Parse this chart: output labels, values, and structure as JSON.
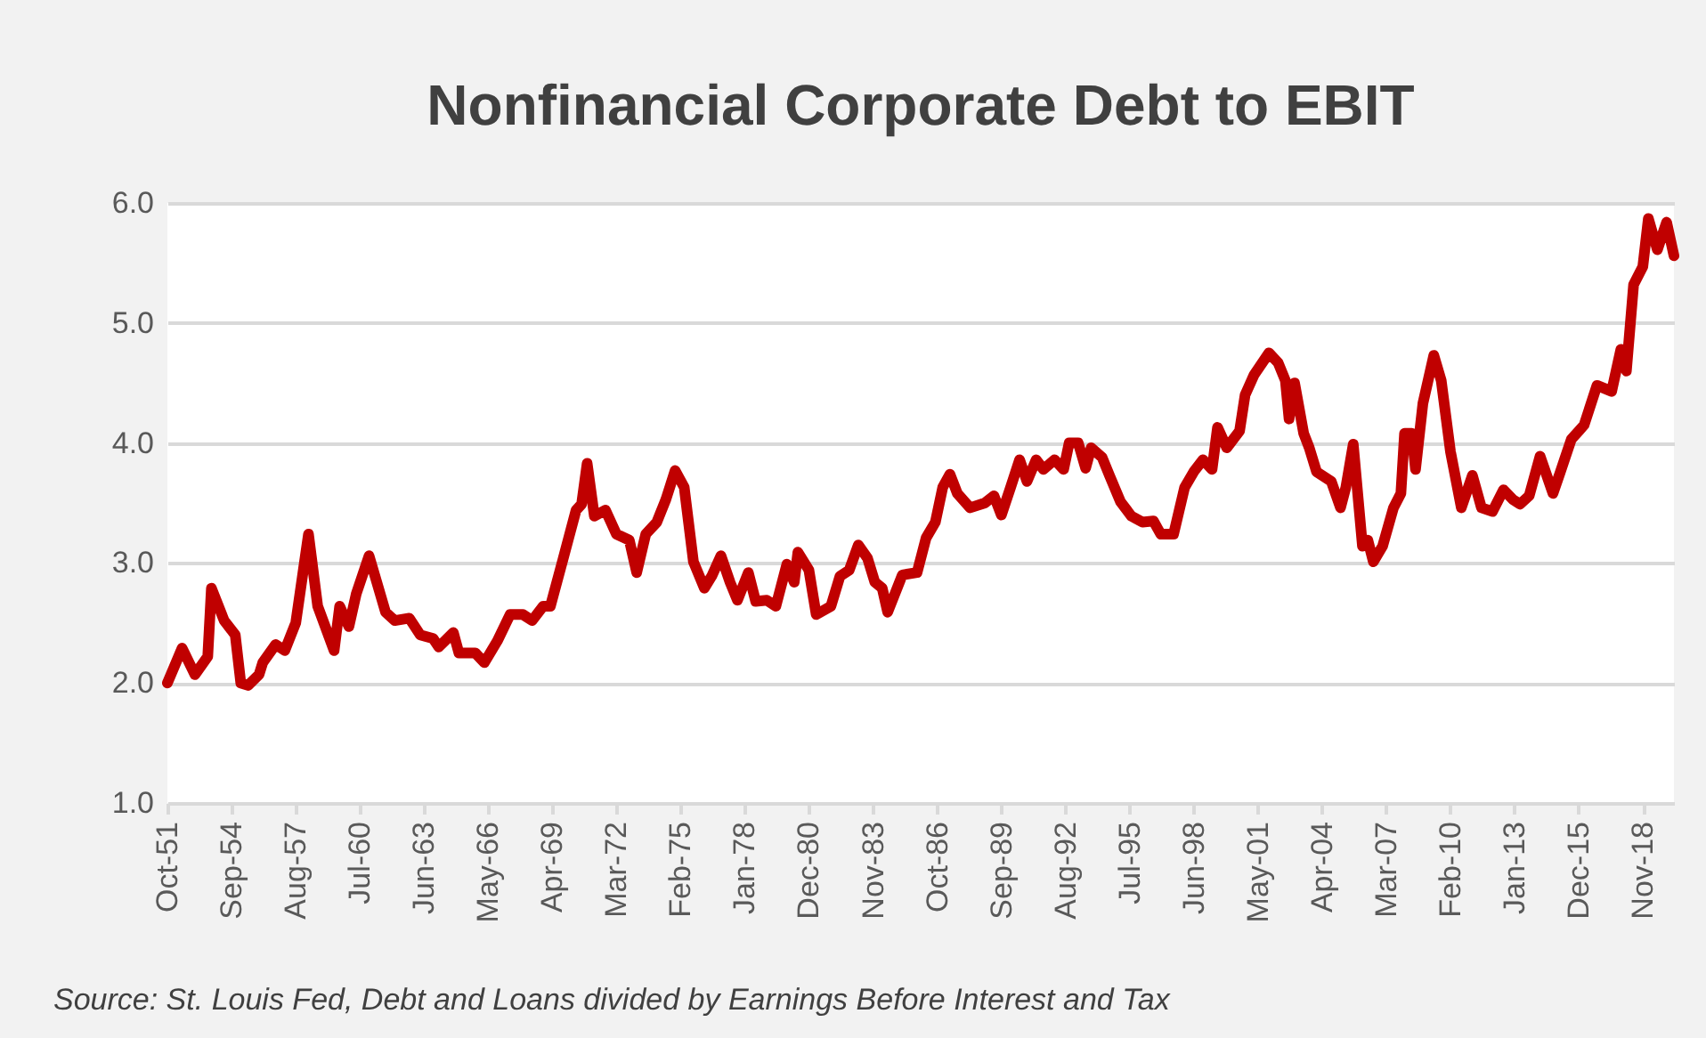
{
  "chart_data": {
    "type": "line",
    "title": "Nonfinancial Corporate Debt to EBIT",
    "annotations": [
      "Source: St. Louis Fed, Debt and Loans divided by Earnings Before Interest and Tax"
    ],
    "x": [
      "1951-10",
      "1952-06",
      "1953-01",
      "1953-08",
      "1953-10",
      "1954-05",
      "1954-11",
      "1955-02",
      "1955-06",
      "1955-12",
      "1956-02",
      "1956-09",
      "1957-02",
      "1957-08",
      "1958-03",
      "1958-08",
      "1959-05",
      "1959-08",
      "1960-01",
      "1960-05",
      "1960-12",
      "1961-09",
      "1962-02",
      "1962-10",
      "1963-04",
      "1963-11",
      "1964-02",
      "1964-10",
      "1965-01",
      "1965-10",
      "1966-03",
      "1966-10",
      "1967-05",
      "1967-12",
      "1968-05",
      "1968-11",
      "1969-03",
      "1969-10",
      "1970-05",
      "1970-08",
      "1970-11",
      "1971-03",
      "1971-09",
      "1972-03",
      "1972-10",
      "1973-02",
      "1973-07",
      "1974-01",
      "1974-06",
      "1974-11",
      "1975-04",
      "1975-09",
      "1976-03",
      "1976-07",
      "1976-12",
      "1977-05",
      "1977-09",
      "1978-03",
      "1978-07",
      "1979-01",
      "1979-06",
      "1979-12",
      "1980-04",
      "1980-06",
      "1980-12",
      "1981-04",
      "1981-12",
      "1982-05",
      "1982-10",
      "1983-03",
      "1983-08",
      "1983-12",
      "1984-04",
      "1984-07",
      "1985-03",
      "1985-11",
      "1986-04",
      "1986-09",
      "1987-01",
      "1987-05",
      "1987-09",
      "1988-04",
      "1988-12",
      "1989-05",
      "1989-09",
      "1990-02",
      "1990-07",
      "1990-11",
      "1991-04",
      "1991-08",
      "1992-02",
      "1992-07",
      "1992-10",
      "1993-03",
      "1993-07",
      "1993-10",
      "1994-04",
      "1994-08",
      "1995-02",
      "1995-08",
      "1996-02",
      "1996-08",
      "1996-12",
      "1997-07",
      "1998-01",
      "1998-06",
      "1998-11",
      "1999-04",
      "1999-07",
      "1999-12",
      "2000-07",
      "2000-10",
      "2001-03",
      "2001-11",
      "2002-04",
      "2002-08",
      "2002-10",
      "2003-01",
      "2003-06",
      "2003-09",
      "2004-01",
      "2004-04",
      "2004-09",
      "2005-02",
      "2005-05",
      "2005-09",
      "2006-02",
      "2006-05",
      "2006-08",
      "2007-01",
      "2007-07",
      "2007-11",
      "2008-01",
      "2008-05",
      "2008-07",
      "2008-11",
      "2009-05",
      "2009-09",
      "2010-02",
      "2010-08",
      "2011-02",
      "2011-07",
      "2012-01",
      "2012-07",
      "2012-12",
      "2013-04",
      "2013-09",
      "2014-03",
      "2014-10",
      "2015-02",
      "2015-08",
      "2016-03",
      "2016-10",
      "2017-06",
      "2017-11",
      "2018-02",
      "2018-06",
      "2018-11",
      "2019-02",
      "2019-07",
      "2019-12",
      "2020-04"
    ],
    "series": [
      {
        "color": "#c00000",
        "values": [
          2.0,
          2.29,
          2.07,
          2.22,
          2.79,
          2.52,
          2.4,
          2.0,
          1.98,
          2.07,
          2.17,
          2.32,
          2.27,
          2.5,
          3.24,
          2.64,
          2.27,
          2.64,
          2.47,
          2.74,
          3.06,
          2.59,
          2.52,
          2.54,
          2.4,
          2.37,
          2.3,
          2.42,
          2.25,
          2.25,
          2.17,
          2.35,
          2.57,
          2.57,
          2.52,
          2.64,
          2.64,
          3.04,
          3.44,
          3.49,
          3.83,
          3.39,
          3.44,
          3.24,
          3.19,
          2.92,
          3.24,
          3.34,
          3.53,
          3.77,
          3.63,
          3.01,
          2.79,
          2.89,
          3.06,
          2.84,
          2.69,
          2.92,
          2.68,
          2.69,
          2.64,
          2.99,
          2.84,
          3.09,
          2.94,
          2.57,
          2.64,
          2.89,
          2.94,
          3.15,
          3.04,
          2.84,
          2.79,
          2.59,
          2.9,
          2.92,
          3.21,
          3.34,
          3.63,
          3.74,
          3.58,
          3.46,
          3.5,
          3.56,
          3.4,
          3.63,
          3.86,
          3.68,
          3.86,
          3.78,
          3.86,
          3.78,
          4.0,
          4.0,
          3.79,
          3.96,
          3.88,
          3.73,
          3.51,
          3.39,
          3.34,
          3.35,
          3.24,
          3.24,
          3.63,
          3.76,
          3.86,
          3.78,
          4.13,
          3.96,
          4.1,
          4.4,
          4.57,
          4.75,
          4.67,
          4.52,
          4.2,
          4.5,
          4.08,
          3.96,
          3.76,
          3.73,
          3.68,
          3.46,
          3.63,
          3.99,
          3.14,
          3.19,
          3.01,
          3.14,
          3.46,
          3.58,
          4.08,
          4.08,
          3.78,
          4.33,
          4.73,
          4.52,
          3.93,
          3.46,
          3.73,
          3.46,
          3.43,
          3.61,
          3.53,
          3.49,
          3.56,
          3.89,
          3.58,
          3.76,
          4.03,
          4.15,
          4.48,
          4.43,
          4.78,
          4.6,
          5.32,
          5.47,
          5.87,
          5.61,
          5.84,
          5.56
        ]
      }
    ],
    "xlim": [
      "1951-10",
      "2020-04"
    ],
    "xticks": [
      {
        "value": "1951-10",
        "label": "Oct-51"
      },
      {
        "value": "1954-09",
        "label": "Sep-54"
      },
      {
        "value": "1957-08",
        "label": "Aug-57"
      },
      {
        "value": "1960-07",
        "label": "Jul-60"
      },
      {
        "value": "1963-06",
        "label": "Jun-63"
      },
      {
        "value": "1966-05",
        "label": "May-66"
      },
      {
        "value": "1969-04",
        "label": "Apr-69"
      },
      {
        "value": "1972-03",
        "label": "Mar-72"
      },
      {
        "value": "1975-02",
        "label": "Feb-75"
      },
      {
        "value": "1978-01",
        "label": "Jan-78"
      },
      {
        "value": "1980-12",
        "label": "Dec-80"
      },
      {
        "value": "1983-11",
        "label": "Nov-83"
      },
      {
        "value": "1986-10",
        "label": "Oct-86"
      },
      {
        "value": "1989-09",
        "label": "Sep-89"
      },
      {
        "value": "1992-08",
        "label": "Aug-92"
      },
      {
        "value": "1995-07",
        "label": "Jul-95"
      },
      {
        "value": "1998-06",
        "label": "Jun-98"
      },
      {
        "value": "2001-05",
        "label": "May-01"
      },
      {
        "value": "2004-04",
        "label": "Apr-04"
      },
      {
        "value": "2007-03",
        "label": "Mar-07"
      },
      {
        "value": "2010-02",
        "label": "Feb-10"
      },
      {
        "value": "2013-01",
        "label": "Jan-13"
      },
      {
        "value": "2015-12",
        "label": "Dec-15"
      },
      {
        "value": "2018-11",
        "label": "Nov-18"
      }
    ],
    "ylim": [
      1,
      6
    ],
    "yticks": [
      {
        "value": 1,
        "label": "1.0"
      },
      {
        "value": 2,
        "label": "2.0"
      },
      {
        "value": 3,
        "label": "3.0"
      },
      {
        "value": 4,
        "label": "4.0"
      },
      {
        "value": 5,
        "label": "5.0"
      },
      {
        "value": 6,
        "label": "6.0"
      }
    ],
    "grid": "y",
    "line_style": "solid"
  }
}
